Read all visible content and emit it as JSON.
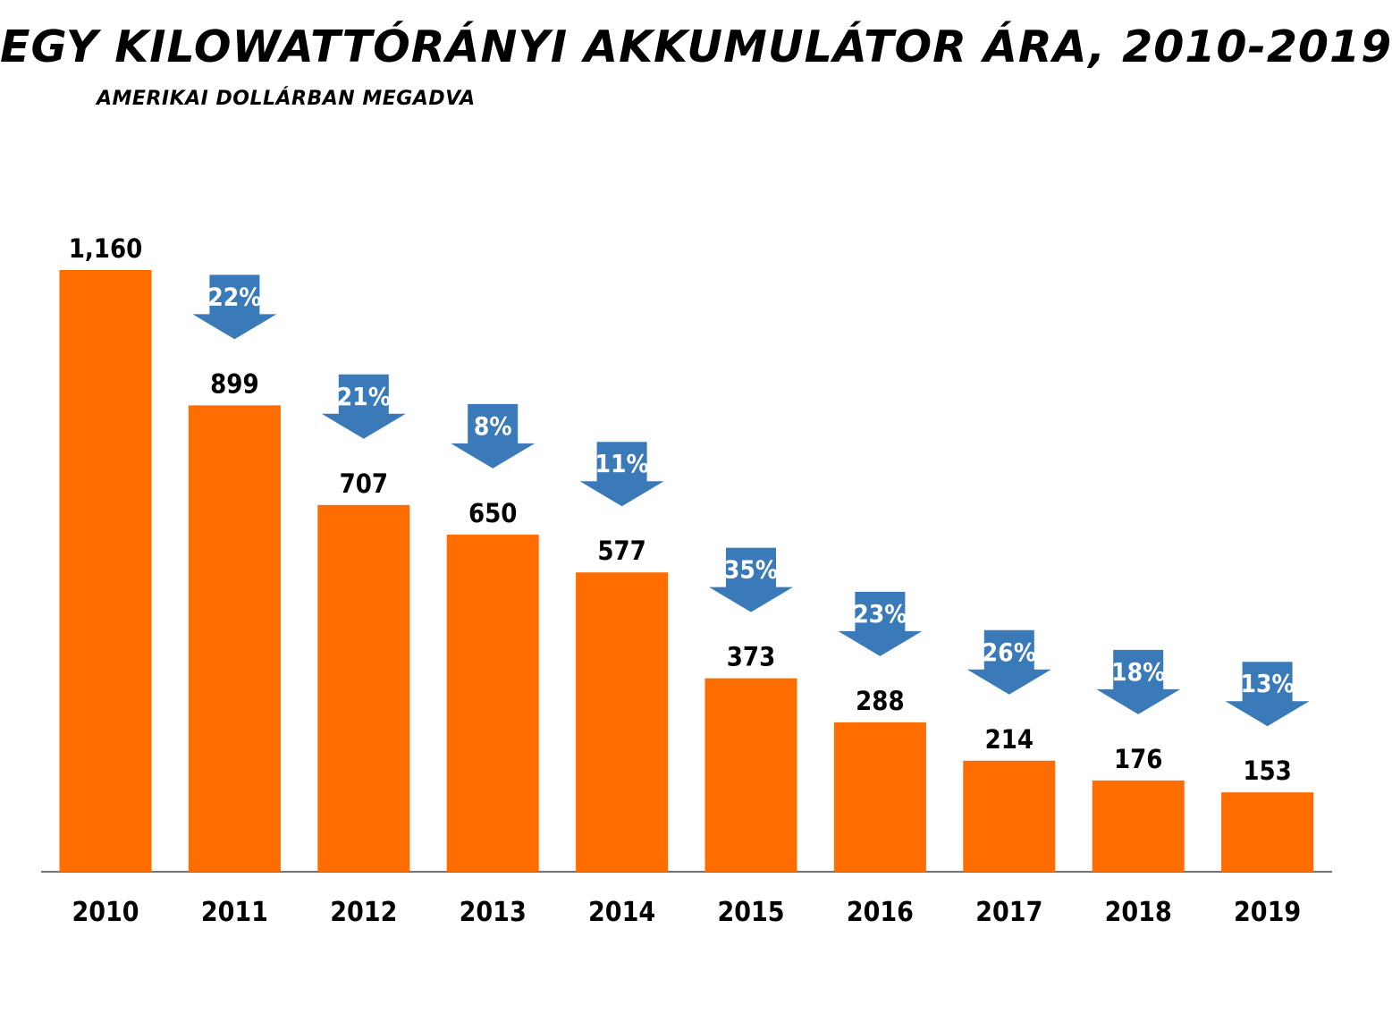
{
  "chart_data": {
    "type": "bar",
    "title": "EGY KILOWATTÓRÁNYI AKKUMULÁTOR ÁRA, 2010-2019",
    "subtitle": "AMERIKAI DOLLÁRBAN MEGADVA",
    "categories": [
      "2010",
      "2011",
      "2012",
      "2013",
      "2014",
      "2015",
      "2016",
      "2017",
      "2018",
      "2019"
    ],
    "values": [
      1160,
      899,
      707,
      650,
      577,
      373,
      288,
      214,
      176,
      153
    ],
    "value_labels": [
      "1,160",
      "899",
      "707",
      "650",
      "577",
      "373",
      "288",
      "214",
      "176",
      "153"
    ],
    "change_labels": [
      "",
      "22%",
      "21%",
      "8%",
      "11%",
      "35%",
      "23%",
      "26%",
      "18%",
      "13%"
    ],
    "ylim": [
      0,
      1160
    ],
    "grid": false,
    "legend": "none",
    "colors": {
      "bar": "#ff6d00",
      "arrow": "#3a7ab8",
      "arrow_text": "#ffffff",
      "text": "#000000",
      "axis": "#444444"
    }
  }
}
